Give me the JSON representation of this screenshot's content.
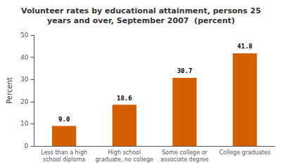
{
  "chart_data": {
    "type": "bar",
    "title": "Volunteer rates by educational attainment, persons 25\nyears and over, September 2007  (percent)",
    "categories": [
      "Less than a high\nschool diploma",
      "High school\ngraduate, no college",
      "Some college or\nassociate degree",
      "College graduates"
    ],
    "values": [
      9.0,
      18.6,
      30.7,
      41.8
    ],
    "value_labels": [
      "9.0",
      "18.6",
      "30.7",
      "41.8"
    ],
    "data_labels": true,
    "color": "#d45f00",
    "ylabel": "Percent",
    "ylim": [
      0,
      50
    ],
    "yticks": [
      0,
      10,
      20,
      30,
      40,
      50
    ],
    "grid": false
  }
}
